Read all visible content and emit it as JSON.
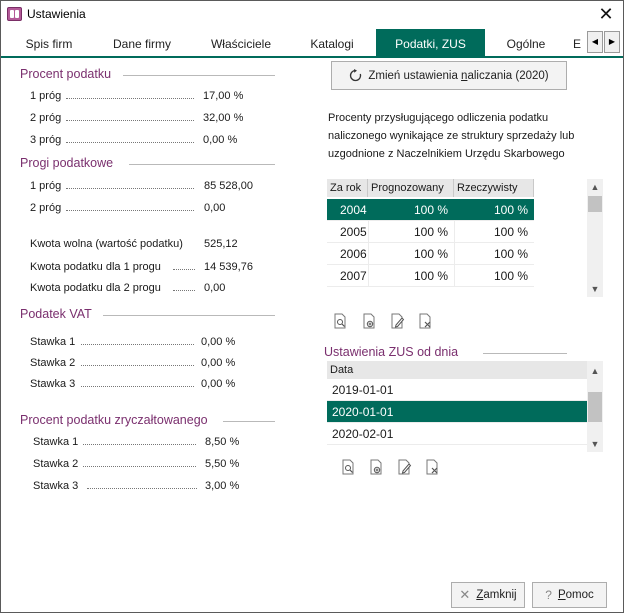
{
  "window": {
    "title": "Ustawienia"
  },
  "tabs": [
    {
      "label": "Spis firm",
      "active": false
    },
    {
      "label": "Dane firmy",
      "active": false
    },
    {
      "label": "Właściciele",
      "active": false
    },
    {
      "label": "Katalogi",
      "active": false
    },
    {
      "label": "Podatki, ZUS",
      "active": true
    },
    {
      "label": "Ogólne",
      "active": false
    },
    {
      "label": "E",
      "active": false
    }
  ],
  "procent_podatku": {
    "header": "Procent podatku",
    "rows": [
      {
        "label": "1 próg",
        "value": "17,00 %"
      },
      {
        "label": "2 próg",
        "value": "32,00 %"
      },
      {
        "label": "3 próg",
        "value": "0,00 %"
      }
    ]
  },
  "progi_podatkowe": {
    "header": "Progi podatkowe",
    "rows": [
      {
        "label": "1 próg",
        "value": "85 528,00"
      },
      {
        "label": "2 próg",
        "value": "0,00"
      }
    ],
    "kwoty": [
      {
        "label": "Kwota wolna (wartość podatku)",
        "value": "525,12"
      },
      {
        "label": "Kwota podatku dla 1 progu",
        "value": "14 539,76"
      },
      {
        "label": "Kwota podatku dla 2 progu",
        "value": "0,00"
      }
    ]
  },
  "podatek_vat": {
    "header": "Podatek VAT",
    "rows": [
      {
        "label": "Stawka 1",
        "value": "0,00 %"
      },
      {
        "label": "Stawka 2",
        "value": "0,00 %"
      },
      {
        "label": "Stawka 3",
        "value": "0,00 %"
      }
    ]
  },
  "zryczaltowany": {
    "header": "Procent podatku zryczałtowanego",
    "rows": [
      {
        "label": "Stawka 1",
        "value": "8,50 %"
      },
      {
        "label": "Stawka 2",
        "value": "5,50 %"
      },
      {
        "label": "Stawka 3",
        "value": "3,00 %"
      }
    ]
  },
  "change_button": {
    "label_before": "Zmień ustawienia ",
    "label_ul": "n",
    "label_after": "aliczania (2020)",
    "icon": "refresh-icon"
  },
  "odliczenia": {
    "info": "Procenty przysługującego odliczenia podatku naliczonego wynikające ze struktury sprzedaży lub uzgodnione z Naczelnikiem Urzędu Skarbowego",
    "columns": [
      "Za rok",
      "Prognozowany",
      "Rzeczywisty"
    ],
    "rows": [
      {
        "rok": "2004",
        "prog": "100 %",
        "rzecz": "100 %",
        "selected": true
      },
      {
        "rok": "2005",
        "prog": "100 %",
        "rzecz": "100 %",
        "selected": false
      },
      {
        "rok": "2006",
        "prog": "100 %",
        "rzecz": "100 %",
        "selected": false
      },
      {
        "rok": "2007",
        "prog": "100 %",
        "rzecz": "100 %",
        "selected": false
      }
    ]
  },
  "zus": {
    "header": "Ustawienia ZUS od dnia",
    "column": "Data",
    "rows": [
      {
        "data": "2019-01-01",
        "selected": false
      },
      {
        "data": "2020-01-01",
        "selected": true
      },
      {
        "data": "2020-02-01",
        "selected": false
      }
    ]
  },
  "toolbar_icons": [
    "preview-icon",
    "add-icon",
    "edit-icon",
    "delete-icon"
  ],
  "footer": {
    "close_ul": "Z",
    "close_rest": "amknij",
    "help_ul": "P",
    "help_rest": "omoc"
  },
  "colors": {
    "accent": "#006b5b",
    "section_header": "#7a2f6e"
  }
}
